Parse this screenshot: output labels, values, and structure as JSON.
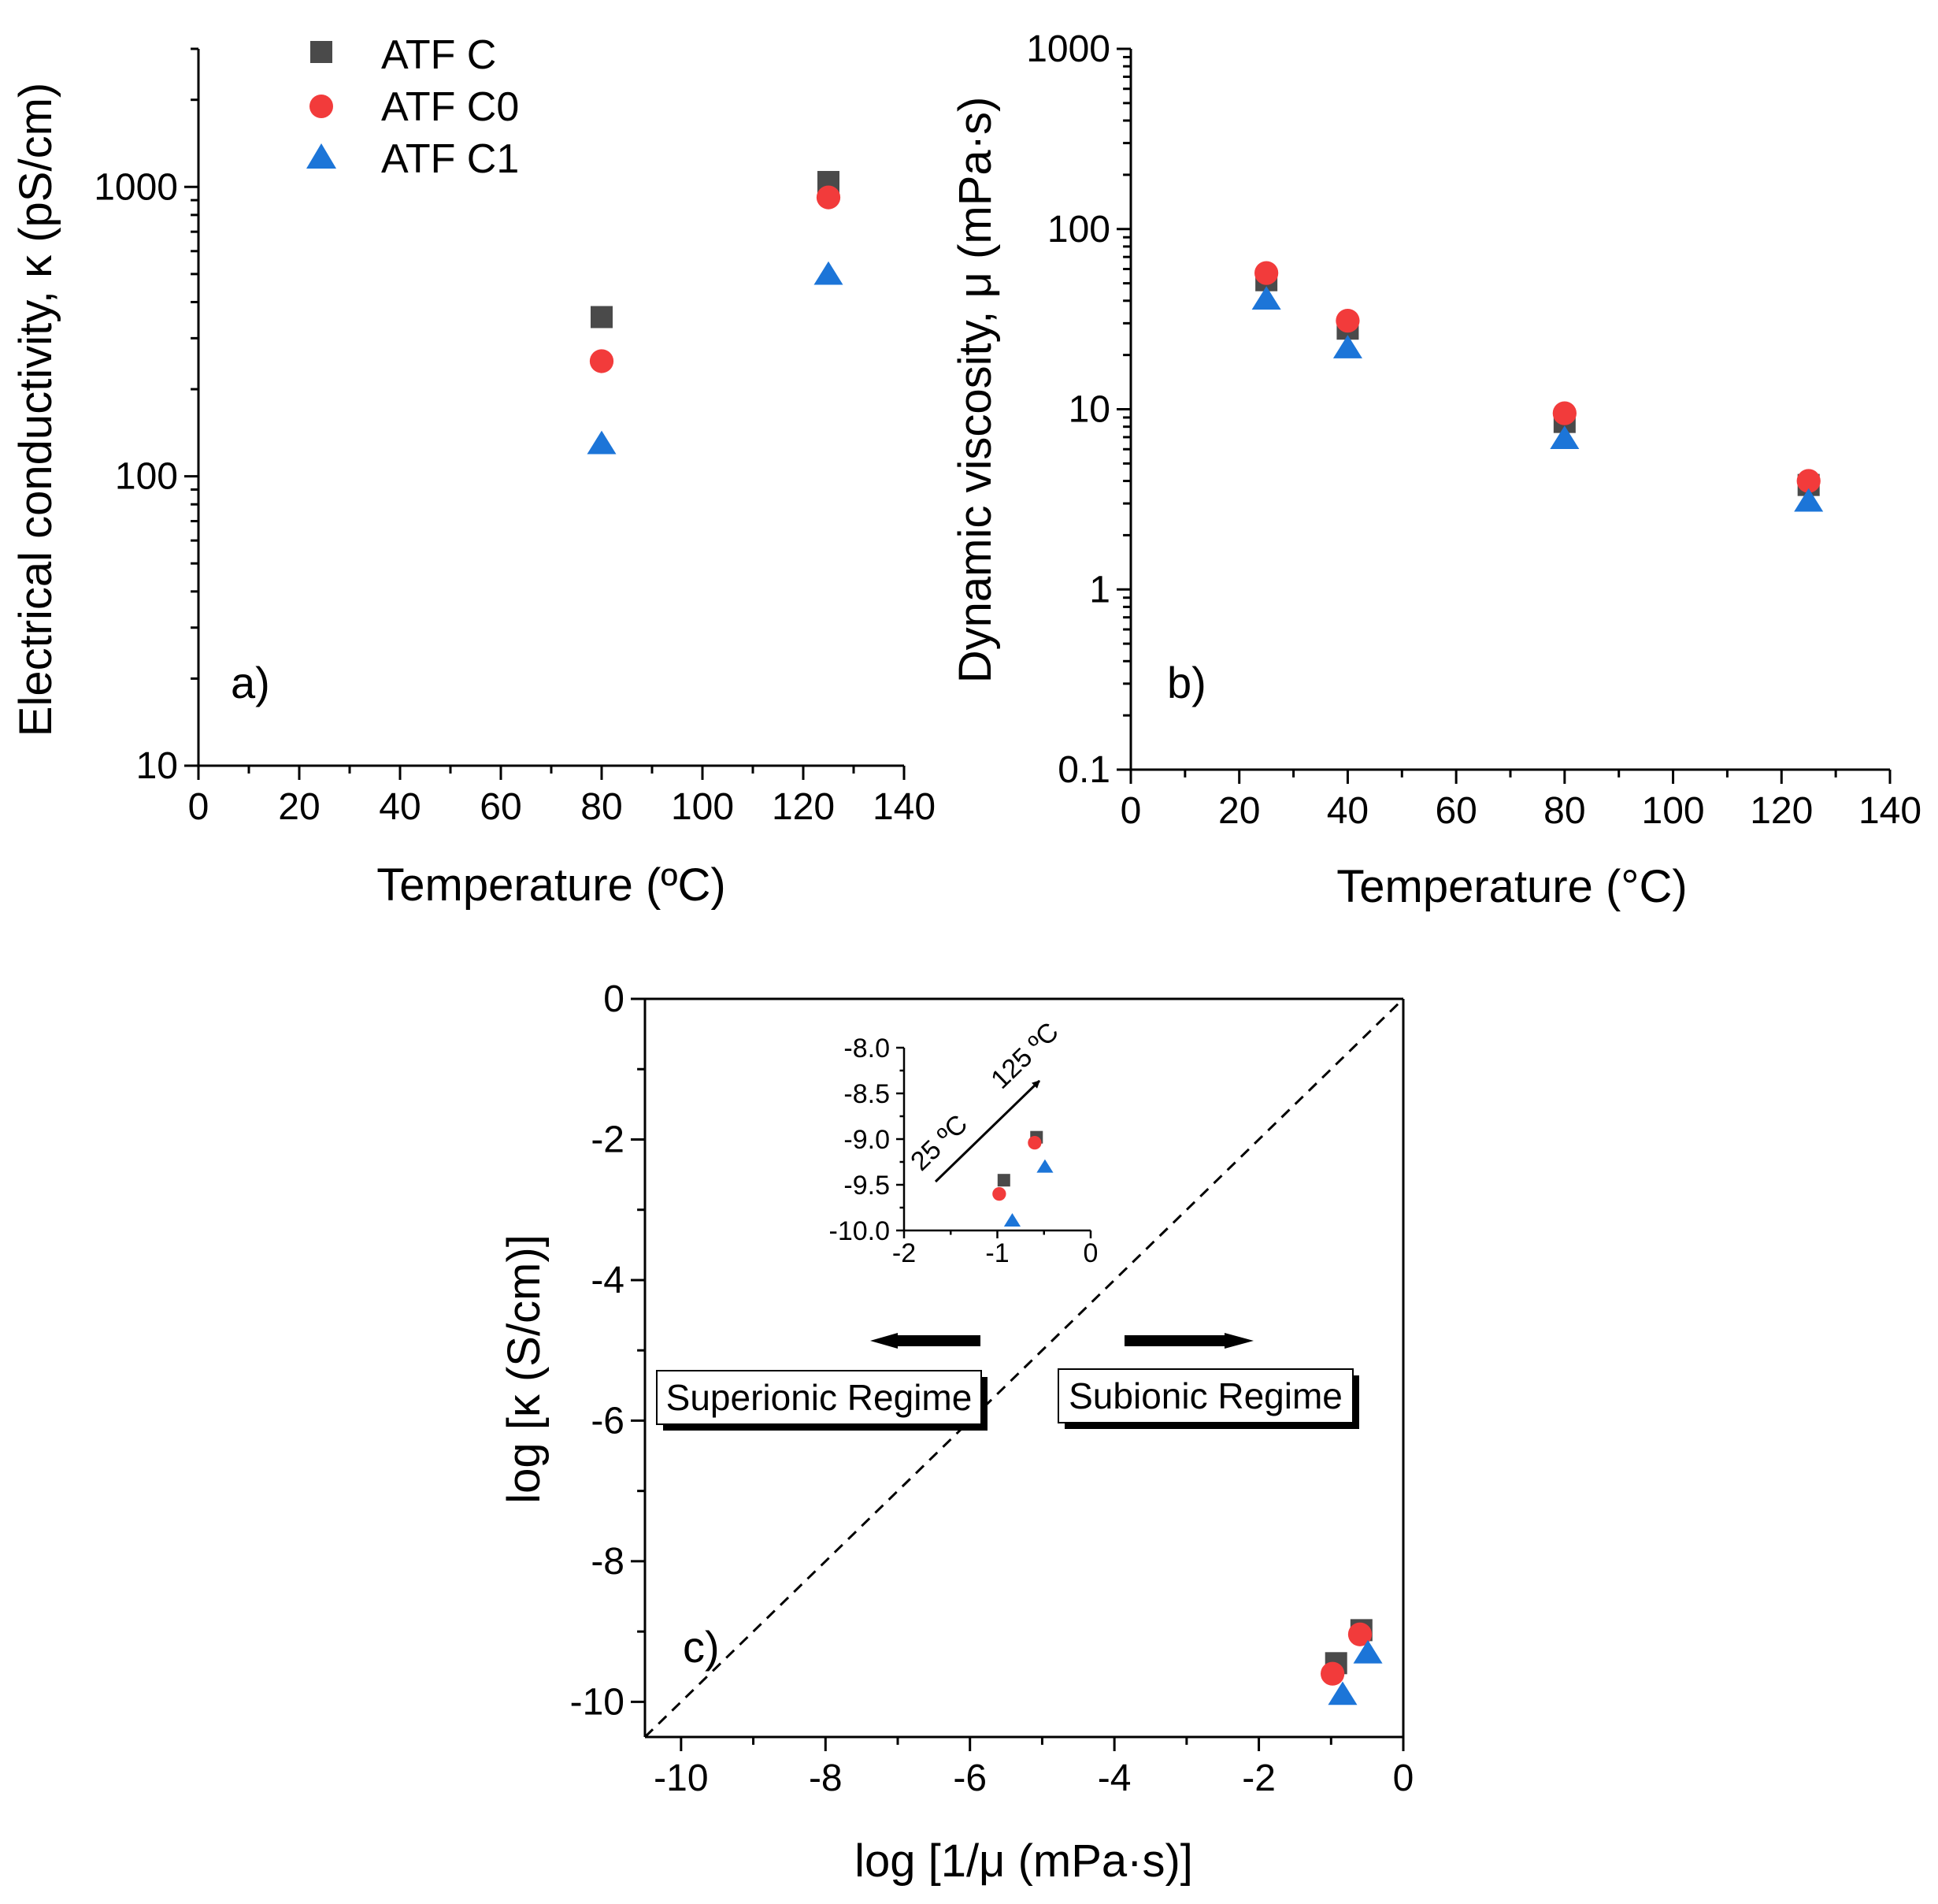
{
  "colors": {
    "ATF C": "#4a4a4a",
    "ATF C0": "#f23b3b",
    "ATF C1": "#1c75d8",
    "axis": "#000000"
  },
  "legend": [
    {
      "name": "ATF C",
      "marker": "square"
    },
    {
      "name": "ATF C0",
      "marker": "circle"
    },
    {
      "name": "ATF C1",
      "marker": "triangle"
    }
  ],
  "chart_data": [
    {
      "id": "a",
      "type": "scatter",
      "panel_label": "a)",
      "xlabel": "Temperature (ºC)",
      "ylabel": "Electrical conductivity, κ (pS/cm)",
      "xlim": [
        0,
        140
      ],
      "ylim": [
        10,
        3000
      ],
      "yscale": "log",
      "xticks": [
        0,
        20,
        40,
        60,
        80,
        100,
        120,
        140
      ],
      "yticks": [
        10,
        100,
        1000
      ],
      "series": [
        {
          "name": "ATF C",
          "marker": "square",
          "x": [
            80,
            125
          ],
          "y": [
            355,
            1040
          ]
        },
        {
          "name": "ATF C0",
          "marker": "circle",
          "x": [
            80,
            125
          ],
          "y": [
            250,
            920
          ]
        },
        {
          "name": "ATF C1",
          "marker": "triangle",
          "x": [
            80,
            125
          ],
          "y": [
            130,
            500
          ]
        }
      ]
    },
    {
      "id": "b",
      "type": "scatter",
      "panel_label": "b)",
      "xlabel": "Temperature (°C)",
      "ylabel": "Dynamic viscosity, μ (mPa·s)",
      "xlim": [
        0,
        140
      ],
      "ylim": [
        0.1,
        1000
      ],
      "yscale": "log",
      "xticks": [
        0,
        20,
        40,
        60,
        80,
        100,
        120,
        140
      ],
      "yticks": [
        0.1,
        1,
        10,
        100,
        1000
      ],
      "series": [
        {
          "name": "ATF C",
          "marker": "square",
          "x": [
            25,
            40,
            80,
            125
          ],
          "y": [
            52,
            28,
            8.5,
            3.8
          ]
        },
        {
          "name": "ATF C0",
          "marker": "circle",
          "x": [
            25,
            40,
            80,
            125
          ],
          "y": [
            57,
            31,
            9.5,
            4.0
          ]
        },
        {
          "name": "ATF C1",
          "marker": "triangle",
          "x": [
            25,
            40,
            80,
            125
          ],
          "y": [
            41,
            22,
            6.9,
            3.1
          ]
        }
      ]
    },
    {
      "id": "c",
      "type": "scatter",
      "panel_label": "c)",
      "xlabel": "log [1/μ (mPa·s)]",
      "ylabel": "log [κ (S/cm)]",
      "xlim": [
        -10.5,
        0
      ],
      "ylim": [
        -10.5,
        0
      ],
      "xticks": [
        -10,
        -8,
        -6,
        -4,
        -2,
        0
      ],
      "yticks": [
        -10,
        -8,
        -6,
        -4,
        -2,
        0
      ],
      "diagonal": "dashed ideal line",
      "annotations": [
        "Superionic Regime",
        "Subionic Regime"
      ],
      "series": [
        {
          "name": "ATF C",
          "marker": "square",
          "x": [
            -0.93,
            -0.58
          ],
          "y": [
            -9.45,
            -8.98
          ]
        },
        {
          "name": "ATF C0",
          "marker": "circle",
          "x": [
            -0.98,
            -0.6
          ],
          "y": [
            -9.6,
            -9.04
          ]
        },
        {
          "name": "ATF C1",
          "marker": "triangle",
          "x": [
            -0.84,
            -0.49
          ],
          "y": [
            -9.89,
            -9.3
          ]
        }
      ],
      "inset": {
        "xlim": [
          -2,
          0
        ],
        "ylim": [
          -10.0,
          -8.0
        ],
        "xticks": [
          -2,
          -1,
          0
        ],
        "yticks": [
          -8.0,
          -8.5,
          -9.0,
          -9.5,
          -10.0
        ],
        "xtick_labels": [
          "-2",
          "-1",
          "0"
        ],
        "ytick_labels": [
          "-8.0",
          "-8.5",
          "-9.0",
          "-9.5",
          "-10.0"
        ],
        "arrow_start_label": "25 ºC",
        "arrow_end_label": "125 ºC"
      }
    }
  ]
}
